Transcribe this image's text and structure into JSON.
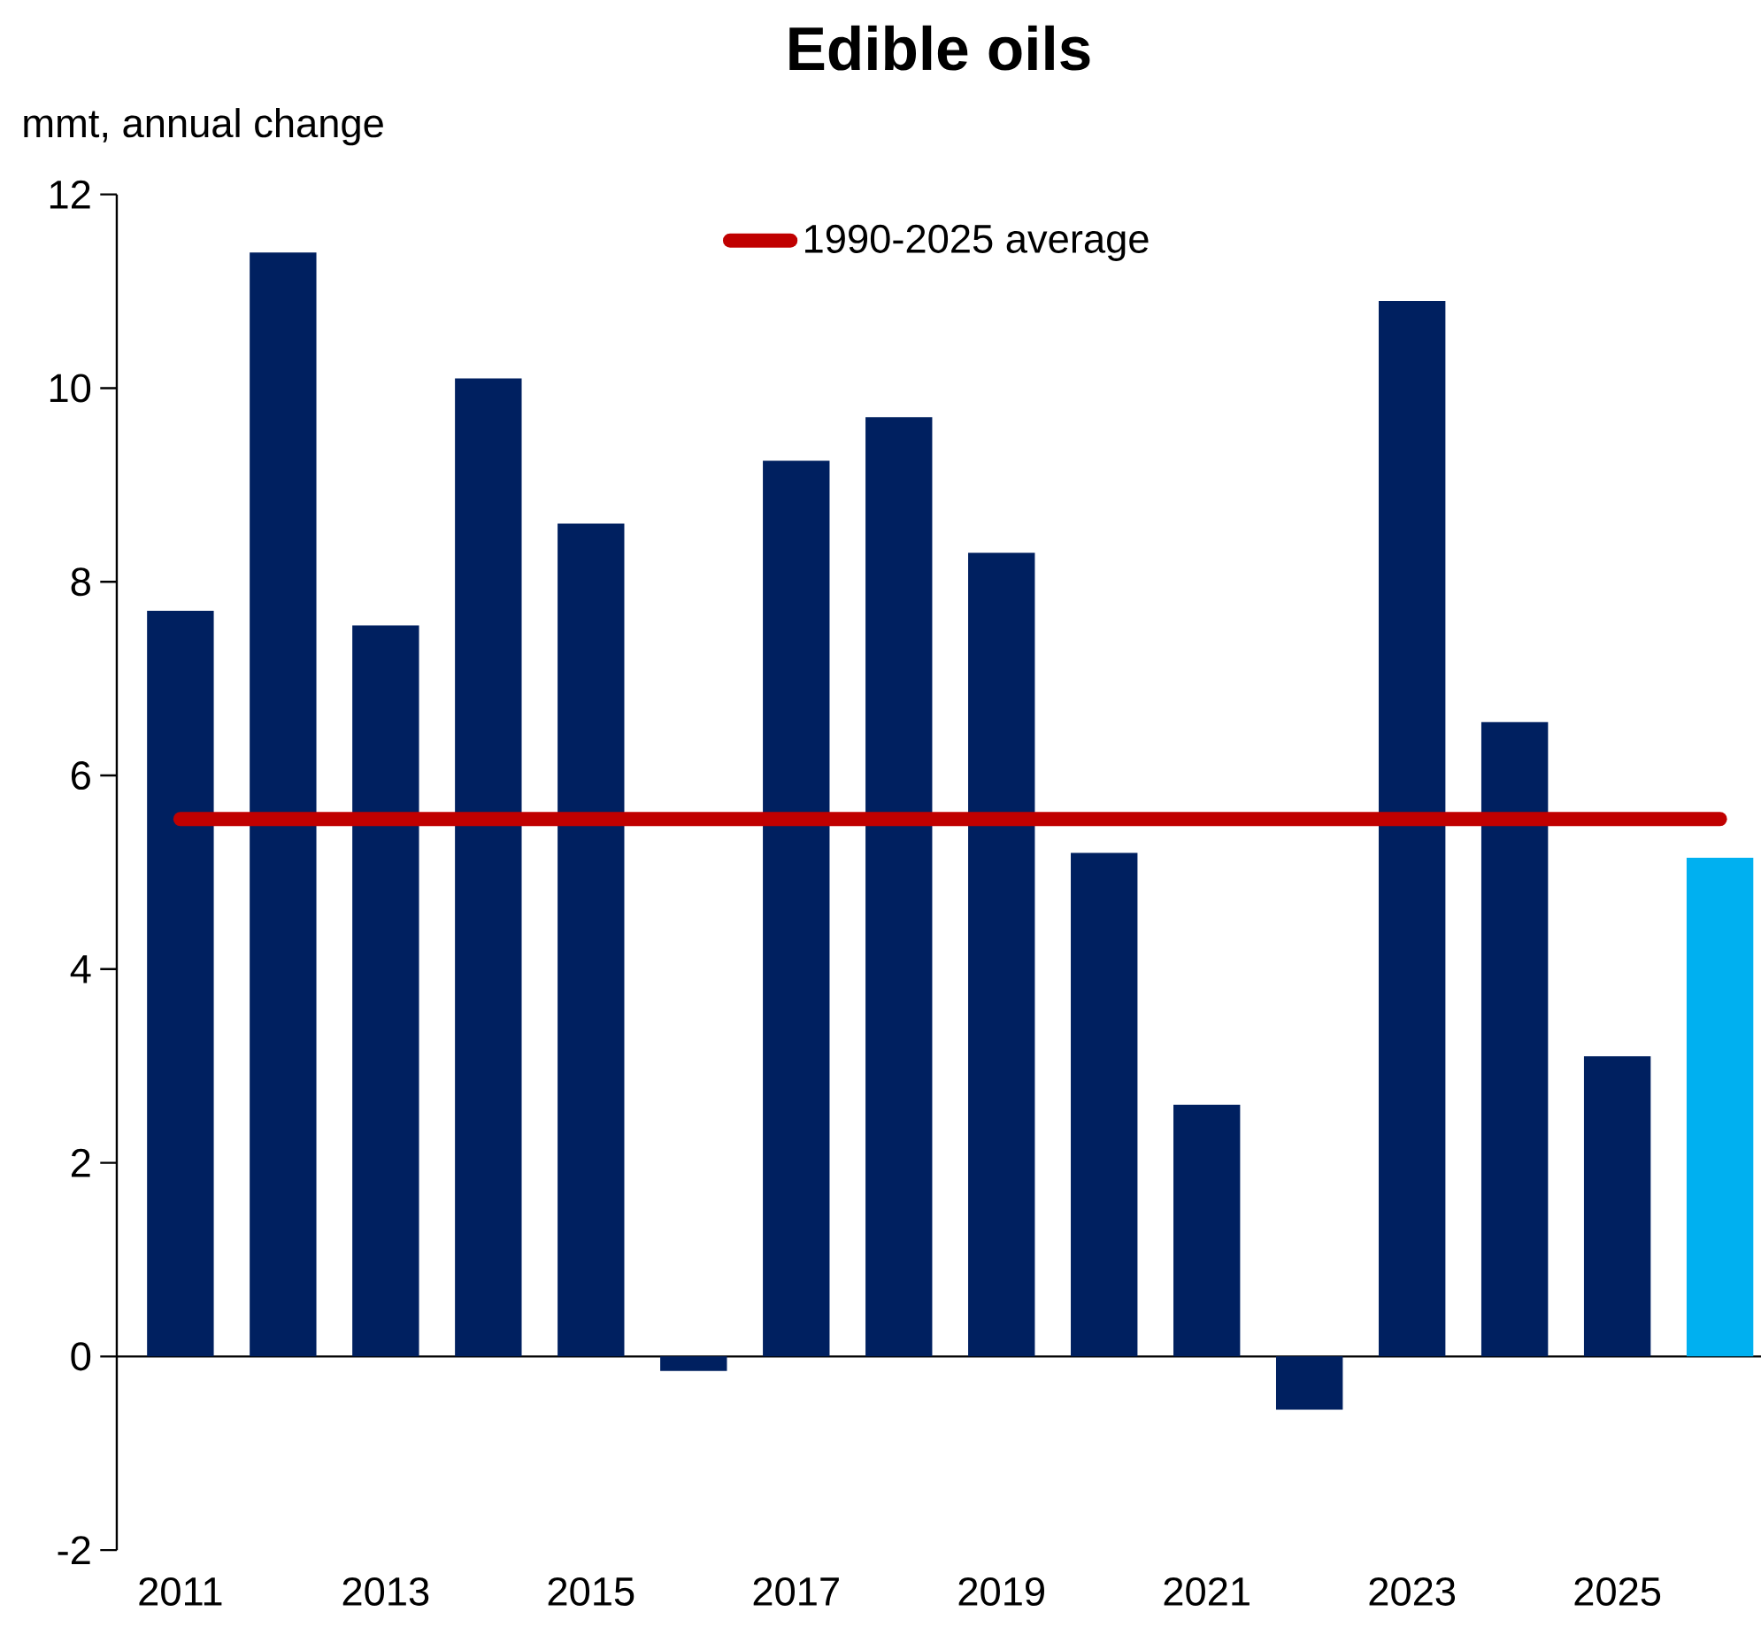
{
  "chart_data": {
    "type": "bar",
    "title": "Edible oils",
    "ylabel": "mmt, annual change",
    "categories": [
      "2011",
      null,
      "2013",
      null,
      "2015",
      null,
      "2017",
      null,
      "2019",
      null,
      "2021",
      null,
      "2023",
      null,
      "2025",
      null
    ],
    "values": [
      7.7,
      11.4,
      7.55,
      10.1,
      8.6,
      -0.15,
      9.25,
      9.7,
      8.3,
      5.2,
      2.6,
      -0.55,
      10.9,
      6.55,
      3.1,
      5.15
    ],
    "colors": [
      "#002060",
      "#002060",
      "#002060",
      "#002060",
      "#002060",
      "#002060",
      "#002060",
      "#002060",
      "#002060",
      "#002060",
      "#002060",
      "#002060",
      "#002060",
      "#002060",
      "#002060",
      "#00b0f0"
    ],
    "ylim": [
      -2,
      12
    ],
    "yticks": [
      -2,
      0,
      2,
      4,
      6,
      8,
      10,
      12
    ],
    "ref_lines": [
      {
        "axis": "y",
        "value": 5.55,
        "label": "1990-2025 average",
        "color": "#c00000"
      }
    ],
    "legend": "top"
  }
}
